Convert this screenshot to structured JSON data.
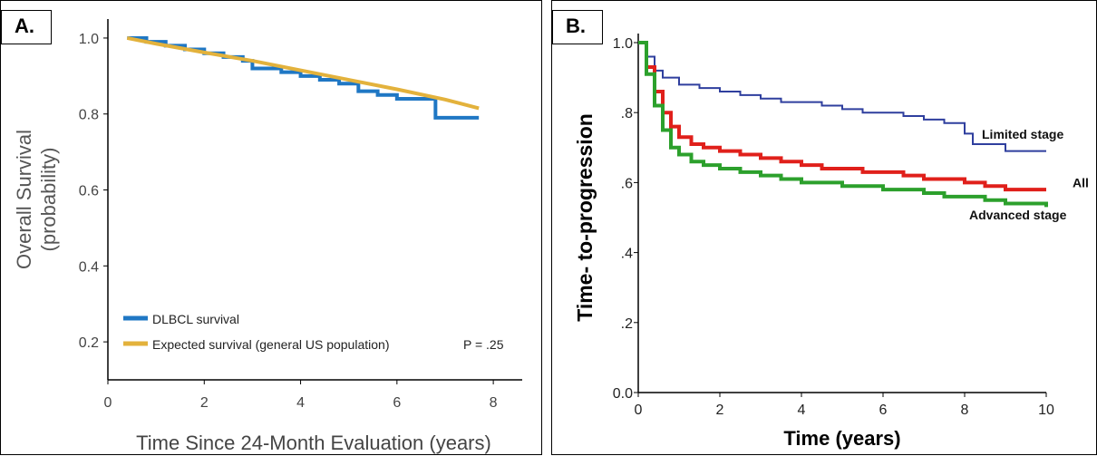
{
  "chart_data": [
    {
      "panel_label": "A.",
      "type": "line",
      "title": "",
      "xlabel": "Time Since 24-Month Evaluation (years)",
      "ylabel_line1": "Overall Survival",
      "ylabel_line2": "(probability)",
      "xlim": [
        0,
        8.6
      ],
      "ylim": [
        0.1,
        1.05
      ],
      "xticks": [
        0,
        2,
        4,
        6,
        8
      ],
      "xtick_labels": [
        "0",
        "2",
        "4",
        "6",
        "8"
      ],
      "yticks": [
        0.2,
        0.4,
        0.6,
        0.8,
        1.0
      ],
      "ytick_labels": [
        "0.2",
        "0.4",
        "0.6",
        "0.8",
        "1.0"
      ],
      "grid": false,
      "legend_position": "bottom-left",
      "annotation": "P = .25",
      "series": [
        {
          "name": "DLBCL survival",
          "color": "#1f77c4",
          "x": [
            0.4,
            0.8,
            1.2,
            1.6,
            2.0,
            2.4,
            2.8,
            3.0,
            3.2,
            3.6,
            4.0,
            4.4,
            4.8,
            5.2,
            5.6,
            6.0,
            6.4,
            6.6,
            6.8,
            7.0,
            7.4,
            7.7
          ],
          "y": [
            1.0,
            0.99,
            0.98,
            0.97,
            0.96,
            0.95,
            0.94,
            0.92,
            0.92,
            0.91,
            0.9,
            0.89,
            0.88,
            0.86,
            0.85,
            0.84,
            0.84,
            0.84,
            0.79,
            0.79,
            0.79,
            0.79
          ]
        },
        {
          "name": "Expected survival (general US population)",
          "color": "#e3b23c",
          "x": [
            0.4,
            1.0,
            2.0,
            3.0,
            4.0,
            5.0,
            6.0,
            7.0,
            7.7
          ],
          "y": [
            1.0,
            0.985,
            0.962,
            0.94,
            0.915,
            0.89,
            0.865,
            0.838,
            0.815
          ]
        }
      ]
    },
    {
      "panel_label": "B.",
      "type": "line",
      "title": "",
      "xlabel": "Time (years)",
      "ylabel": "Time- to-progression",
      "xlim": [
        0,
        10
      ],
      "ylim": [
        0,
        1.0
      ],
      "xticks": [
        0,
        2,
        4,
        6,
        8,
        10
      ],
      "xtick_labels": [
        "0",
        "2",
        "4",
        "6",
        "8",
        "10"
      ],
      "yticks": [
        0.0,
        0.2,
        0.4,
        0.6,
        0.8,
        1.0
      ],
      "ytick_labels": [
        "0.0",
        ".2",
        ".4",
        ".6",
        ".8",
        "1.0"
      ],
      "grid": false,
      "series": [
        {
          "name": "Limited stage",
          "color": "#2f3f9e",
          "x": [
            0,
            0.2,
            0.4,
            0.6,
            1.0,
            1.5,
            2.0,
            2.5,
            3.0,
            3.5,
            4.0,
            4.5,
            5.0,
            5.5,
            6.0,
            6.5,
            7.0,
            7.5,
            7.8,
            8.0,
            8.2,
            8.5,
            9.0,
            9.5,
            10.0
          ],
          "y": [
            1.0,
            0.96,
            0.92,
            0.9,
            0.88,
            0.87,
            0.86,
            0.85,
            0.84,
            0.83,
            0.83,
            0.82,
            0.81,
            0.8,
            0.8,
            0.79,
            0.78,
            0.77,
            0.77,
            0.74,
            0.71,
            0.71,
            0.69,
            0.69,
            0.69
          ]
        },
        {
          "name": "All",
          "color": "#e0201b",
          "x": [
            0,
            0.2,
            0.4,
            0.6,
            0.8,
            1.0,
            1.3,
            1.6,
            2.0,
            2.5,
            3.0,
            3.5,
            4.0,
            4.5,
            5.0,
            5.5,
            6.0,
            6.5,
            7.0,
            7.5,
            8.0,
            8.5,
            9.0,
            9.5,
            10.0
          ],
          "y": [
            1.0,
            0.93,
            0.86,
            0.8,
            0.76,
            0.73,
            0.71,
            0.7,
            0.69,
            0.68,
            0.67,
            0.66,
            0.65,
            0.64,
            0.64,
            0.63,
            0.63,
            0.62,
            0.61,
            0.61,
            0.6,
            0.59,
            0.58,
            0.58,
            0.58
          ]
        },
        {
          "name": "Advanced stage",
          "color": "#2ca02c",
          "x": [
            0,
            0.2,
            0.4,
            0.6,
            0.8,
            1.0,
            1.3,
            1.6,
            2.0,
            2.5,
            3.0,
            3.5,
            4.0,
            4.5,
            5.0,
            5.5,
            6.0,
            6.5,
            7.0,
            7.5,
            8.0,
            8.5,
            9.0,
            9.5,
            10.0
          ],
          "y": [
            1.0,
            0.91,
            0.82,
            0.75,
            0.7,
            0.68,
            0.66,
            0.65,
            0.64,
            0.63,
            0.62,
            0.61,
            0.6,
            0.6,
            0.59,
            0.59,
            0.58,
            0.58,
            0.57,
            0.56,
            0.56,
            0.55,
            0.54,
            0.54,
            0.53
          ]
        }
      ]
    }
  ]
}
